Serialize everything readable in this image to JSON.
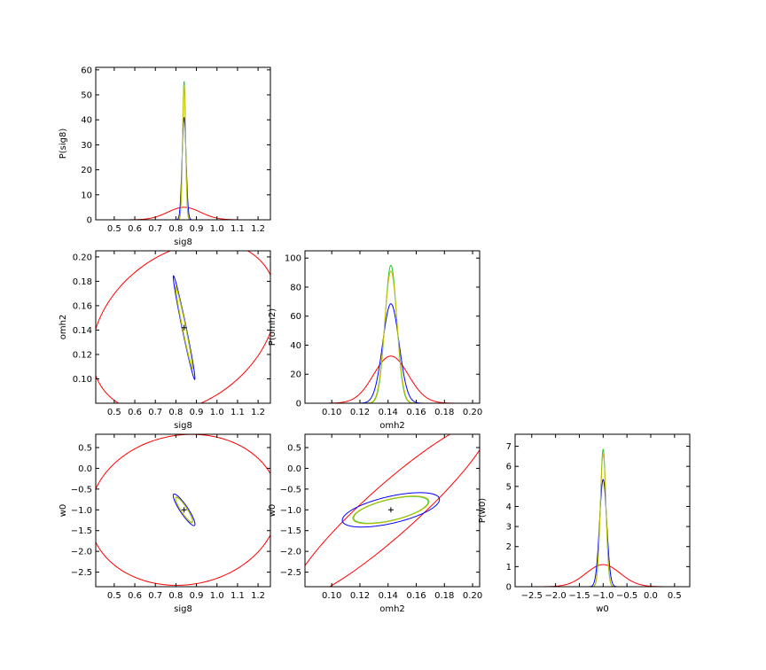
{
  "colors": {
    "red": "#ff0000",
    "blue": "#0000ff",
    "green": "#22cc22",
    "yellow": "#ccbb00",
    "axis": "#000000"
  },
  "chart_data": [
    {
      "id": "sig8-1d",
      "type": "line",
      "xlabel": "sig8",
      "ylabel": "P(sig8)",
      "xlim": [
        0.41,
        1.26
      ],
      "ylim": [
        0,
        61
      ],
      "xticks": [
        "0.5",
        "0.6",
        "0.7",
        "0.8",
        "0.9",
        "1.0",
        "1.1",
        "1.2"
      ],
      "yticks": [
        "0",
        "10",
        "20",
        "30",
        "40",
        "50",
        "60"
      ],
      "series": [
        {
          "color": "red",
          "center": 0.84,
          "sigma": 0.08,
          "peak": 5
        },
        {
          "color": "blue",
          "center": 0.84,
          "sigma": 0.0097,
          "peak": 41
        },
        {
          "color": "green",
          "center": 0.84,
          "sigma": 0.0072,
          "peak": 55.5
        },
        {
          "color": "yellow",
          "center": 0.84,
          "sigma": 0.0074,
          "peak": 54
        }
      ]
    },
    {
      "id": "omh2-sig8",
      "type": "contour",
      "xlabel": "sig8",
      "ylabel": "omh2",
      "xlim": [
        0.41,
        1.26
      ],
      "ylim": [
        0.08,
        0.205
      ],
      "xticks": [
        "0.5",
        "0.6",
        "0.7",
        "0.8",
        "0.9",
        "1.0",
        "1.1",
        "1.2"
      ],
      "yticks": [
        "0.10",
        "0.12",
        "0.14",
        "0.16",
        "0.18",
        "0.20"
      ],
      "center": [
        0.84,
        0.142
      ],
      "ellipses": [
        {
          "color": "red",
          "sx": 0.195,
          "sy": 0.0305,
          "rho": 0.3
        },
        {
          "color": "blue",
          "sx": 0.023,
          "sy": 0.0185,
          "rho": -0.98
        },
        {
          "color": "green",
          "sx": 0.018,
          "sy": 0.0145,
          "rho": -0.98
        },
        {
          "color": "yellow",
          "sx": 0.018,
          "sy": 0.0148,
          "rho": -0.98
        }
      ]
    },
    {
      "id": "omh2-1d",
      "type": "line",
      "xlabel": "omh2",
      "ylabel": "P(omh2)",
      "xlim": [
        0.081,
        0.205
      ],
      "ylim": [
        0,
        105
      ],
      "xticks": [
        "0.10",
        "0.12",
        "0.14",
        "0.16",
        "0.18",
        "0.20"
      ],
      "yticks": [
        "0",
        "20",
        "40",
        "60",
        "80",
        "100"
      ],
      "series": [
        {
          "color": "red",
          "center": 0.142,
          "sigma": 0.0123,
          "peak": 32.5
        },
        {
          "color": "blue",
          "center": 0.142,
          "sigma": 0.0058,
          "peak": 68.5
        },
        {
          "color": "green",
          "center": 0.142,
          "sigma": 0.0042,
          "peak": 95
        },
        {
          "color": "yellow",
          "center": 0.142,
          "sigma": 0.0044,
          "peak": 91
        }
      ]
    },
    {
      "id": "w0-sig8",
      "type": "contour",
      "xlabel": "sig8",
      "ylabel": "w0",
      "xlim": [
        0.41,
        1.26
      ],
      "ylim": [
        -2.85,
        0.82
      ],
      "xticks": [
        "0.5",
        "0.6",
        "0.7",
        "0.8",
        "0.9",
        "1.0",
        "1.1",
        "1.2"
      ],
      "yticks": [
        "-2.5",
        "-2.0",
        "-1.5",
        "-1.0",
        "-0.5",
        "0.0",
        "0.5"
      ],
      "center": [
        0.84,
        -1.0
      ],
      "ellipses": [
        {
          "color": "red",
          "sx": 0.2,
          "sy": 0.79,
          "rho": 0.08
        },
        {
          "color": "blue",
          "sx": 0.023,
          "sy": 0.165,
          "rho": -0.9
        },
        {
          "color": "green",
          "sx": 0.018,
          "sy": 0.13,
          "rho": -0.9
        },
        {
          "color": "yellow",
          "sx": 0.018,
          "sy": 0.135,
          "rho": -0.9
        }
      ]
    },
    {
      "id": "w0-omh2",
      "type": "contour",
      "xlabel": "omh2",
      "ylabel": "w0",
      "xlim": [
        0.081,
        0.205
      ],
      "ylim": [
        -2.85,
        0.82
      ],
      "xticks": [
        "0.10",
        "0.12",
        "0.14",
        "0.16",
        "0.18",
        "0.20"
      ],
      "yticks": [
        "-2.5",
        "-2.0",
        "-1.5",
        "-1.0",
        "-0.5",
        "0.0",
        "0.5"
      ],
      "center": [
        0.142,
        -1.0
      ],
      "ellipses": [
        {
          "color": "red",
          "sx": 0.0305,
          "sy": 0.93,
          "rho": 0.93
        },
        {
          "color": "blue",
          "sx": 0.015,
          "sy": 0.18,
          "rho": 0.6
        },
        {
          "color": "green",
          "sx": 0.0115,
          "sy": 0.14,
          "rho": 0.6
        },
        {
          "color": "yellow",
          "sx": 0.0118,
          "sy": 0.145,
          "rho": 0.6
        }
      ]
    },
    {
      "id": "w0-1d",
      "type": "line",
      "xlabel": "w0",
      "ylabel": "P(w0)",
      "xlim": [
        -2.85,
        0.82
      ],
      "ylim": [
        0,
        7.6
      ],
      "xticks": [
        "-2.5",
        "-2.0",
        "-1.5",
        "-1.0",
        "-0.5",
        "0.0",
        "0.5"
      ],
      "yticks": [
        "0",
        "1",
        "2",
        "3",
        "4",
        "5",
        "6",
        "7"
      ],
      "series": [
        {
          "color": "red",
          "center": -1.0,
          "sigma": 0.36,
          "peak": 1.1
        },
        {
          "color": "blue",
          "center": -1.0,
          "sigma": 0.075,
          "peak": 5.35
        },
        {
          "color": "green",
          "center": -1.0,
          "sigma": 0.058,
          "peak": 6.85
        },
        {
          "color": "yellow",
          "center": -1.0,
          "sigma": 0.06,
          "peak": 6.6
        }
      ]
    }
  ]
}
